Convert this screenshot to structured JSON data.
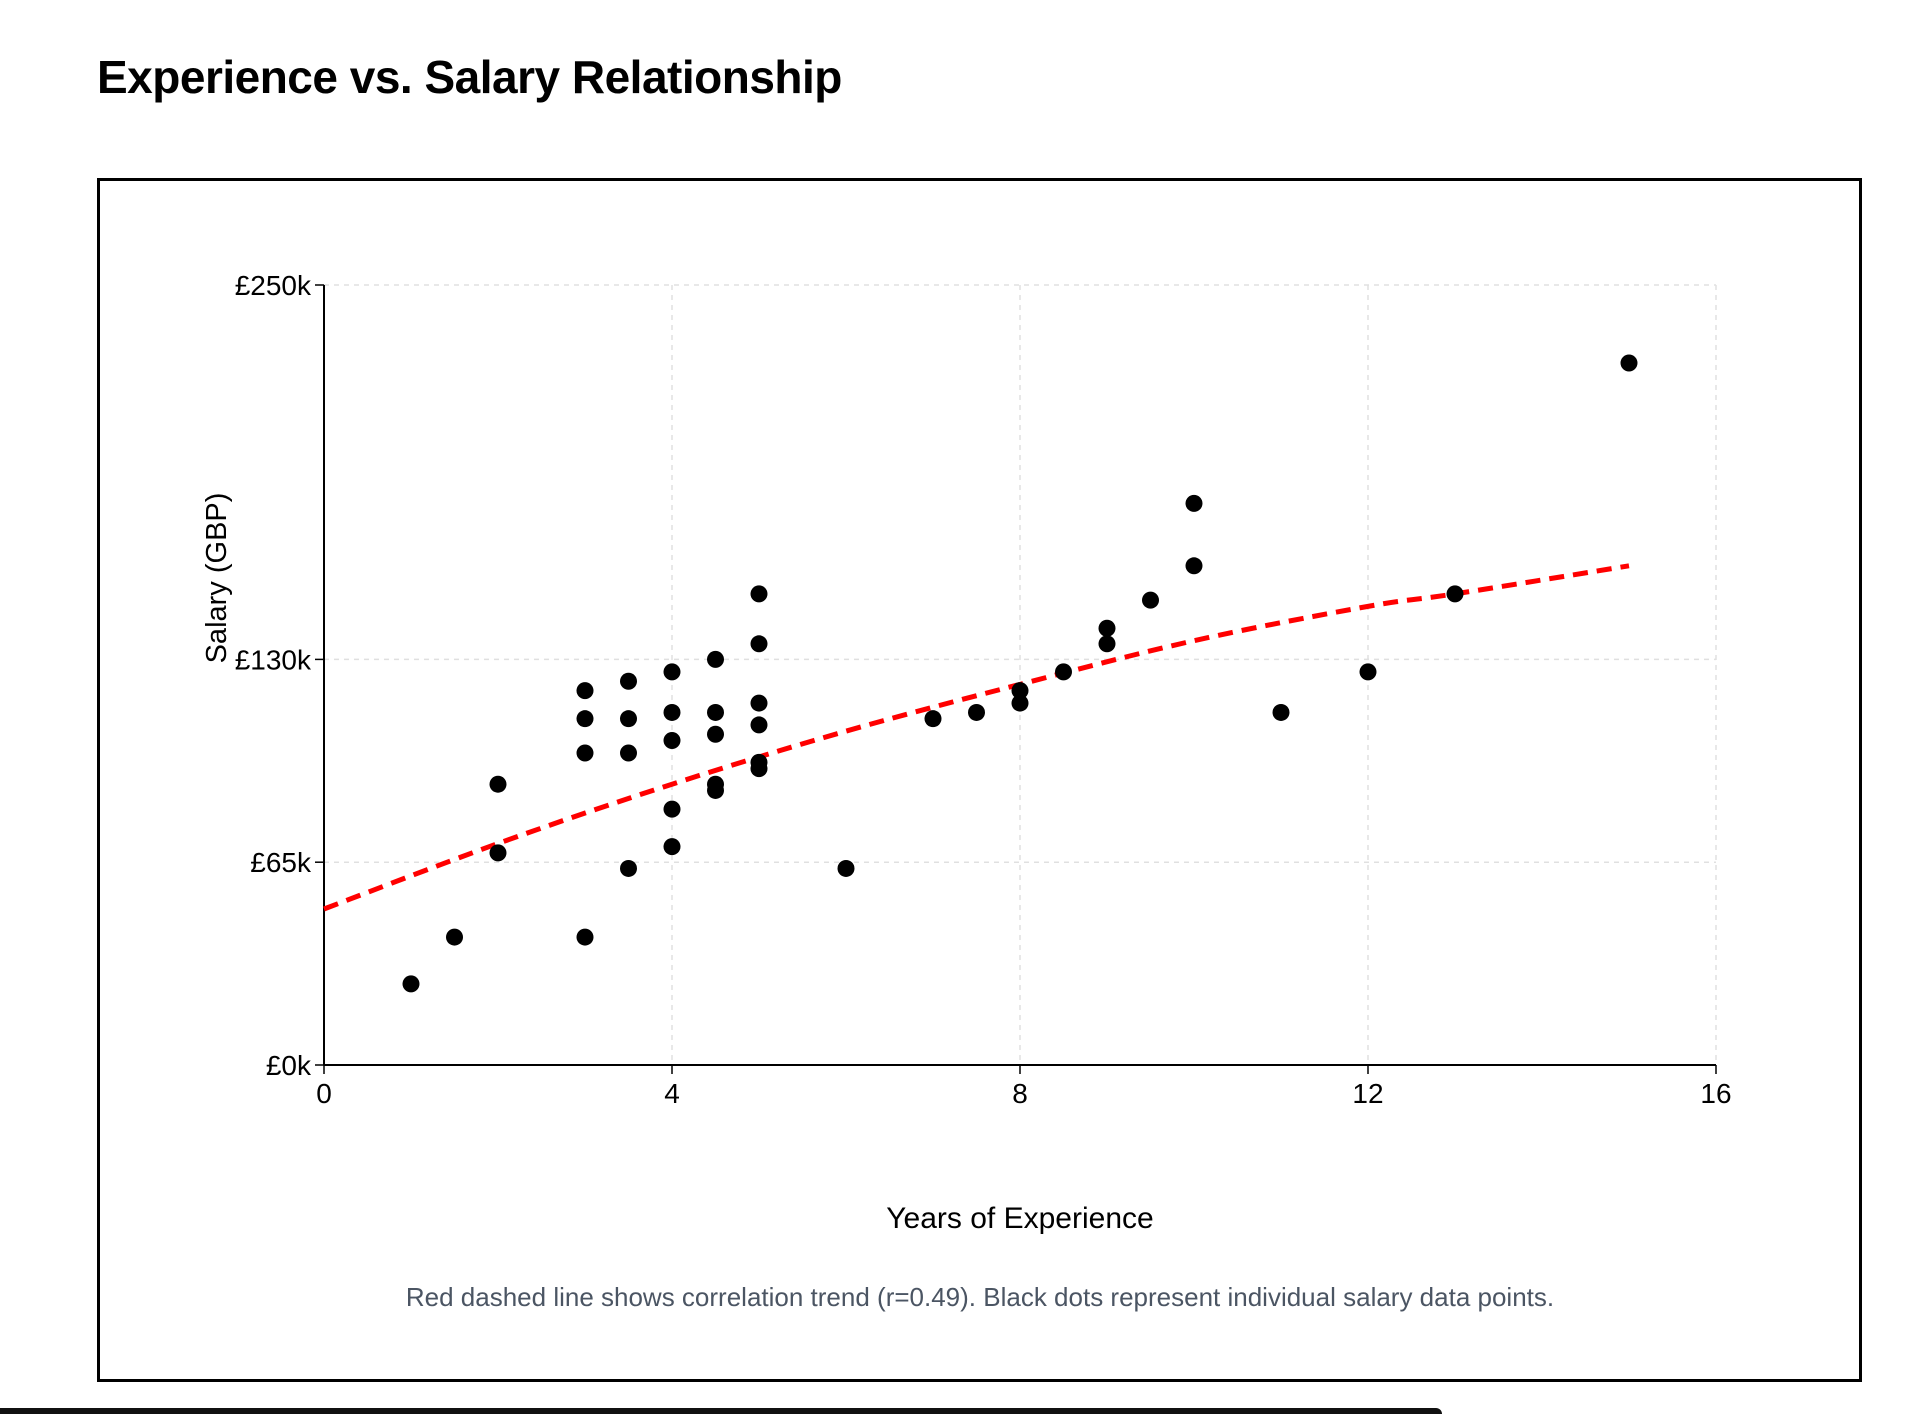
{
  "chart_data": {
    "type": "scatter",
    "title": "Experience vs. Salary Relationship",
    "xlabel": "Years of Experience",
    "ylabel": "Salary (GBP)",
    "xlim": [
      0,
      16
    ],
    "ylim": [
      0,
      250
    ],
    "x_ticks": [
      0,
      4,
      8,
      12,
      16
    ],
    "x_tick_labels": [
      "0",
      "4",
      "8",
      "12",
      "16"
    ],
    "y_ticks": [
      0,
      65,
      130,
      250
    ],
    "y_tick_labels": [
      "£0k",
      "£65k",
      "£130k",
      "£250k"
    ],
    "grid": true,
    "caption": "Red dashed line shows correlation trend (r=0.49). Black dots represent individual salary data points.",
    "colors": {
      "points": "#000000",
      "trend": "#ff0000",
      "grid": "#e0e0e0",
      "caption": "#4b5563"
    },
    "points": [
      [
        1,
        26
      ],
      [
        1.5,
        41
      ],
      [
        2,
        90
      ],
      [
        2,
        68
      ],
      [
        3,
        120
      ],
      [
        3,
        111
      ],
      [
        3,
        100
      ],
      [
        3,
        41
      ],
      [
        3.5,
        123
      ],
      [
        3.5,
        111
      ],
      [
        3.5,
        100
      ],
      [
        3.5,
        63
      ],
      [
        4,
        126
      ],
      [
        4,
        113
      ],
      [
        4,
        104
      ],
      [
        4,
        82
      ],
      [
        4,
        70
      ],
      [
        4.5,
        130
      ],
      [
        4.5,
        113
      ],
      [
        4.5,
        106
      ],
      [
        4.5,
        90
      ],
      [
        4.5,
        88
      ],
      [
        5,
        151
      ],
      [
        5,
        135
      ],
      [
        5,
        116
      ],
      [
        5,
        109
      ],
      [
        5,
        97
      ],
      [
        5,
        95
      ],
      [
        6,
        63
      ],
      [
        7,
        111
      ],
      [
        7.5,
        113
      ],
      [
        8,
        120
      ],
      [
        8,
        116
      ],
      [
        8.5,
        126
      ],
      [
        9,
        140
      ],
      [
        9,
        135
      ],
      [
        9.5,
        149
      ],
      [
        10,
        180
      ],
      [
        10,
        160
      ],
      [
        11,
        113
      ],
      [
        12,
        126
      ],
      [
        13,
        151
      ],
      [
        15,
        225
      ]
    ],
    "trend": [
      [
        0,
        50
      ],
      [
        2,
        71
      ],
      [
        4,
        90
      ],
      [
        6,
        107
      ],
      [
        8,
        122
      ],
      [
        10,
        136
      ],
      [
        12,
        147
      ],
      [
        13,
        151
      ],
      [
        15,
        160
      ]
    ]
  }
}
